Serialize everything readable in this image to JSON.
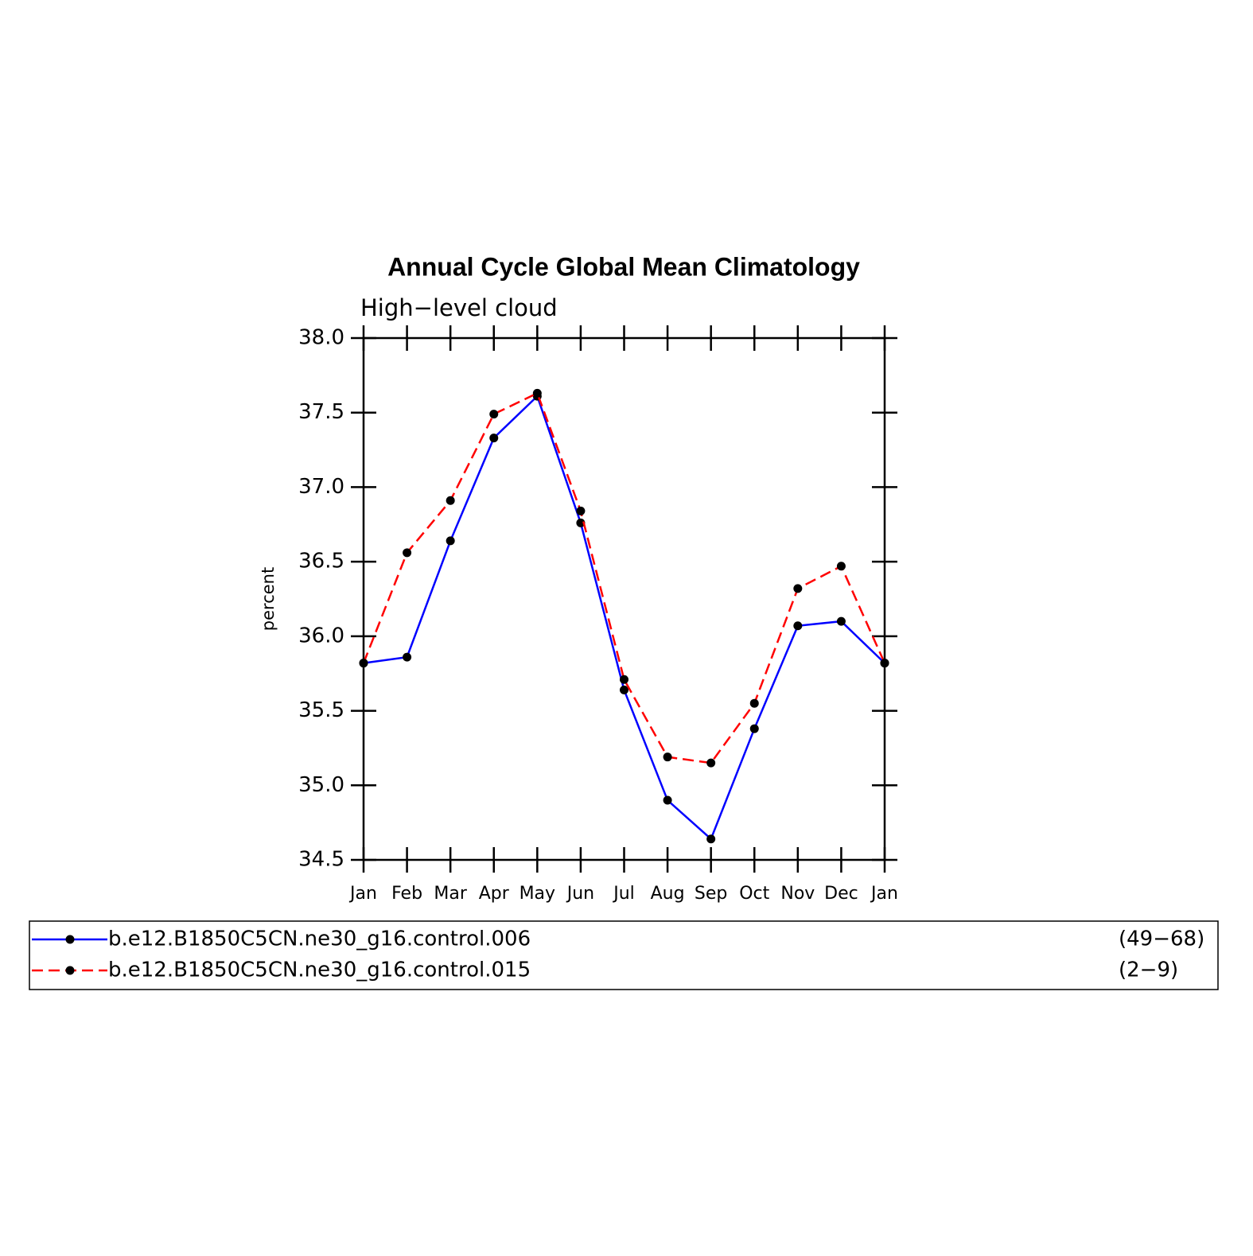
{
  "chart_data": {
    "type": "line",
    "title": "Annual Cycle Global Mean Climatology",
    "subtitle": "High−level cloud",
    "ylabel": "percent",
    "categories": [
      "Jan",
      "Feb",
      "Mar",
      "Apr",
      "May",
      "Jun",
      "Jul",
      "Aug",
      "Sep",
      "Oct",
      "Nov",
      "Dec",
      "Jan"
    ],
    "ylim": [
      34.5,
      38.0
    ],
    "yticks": [
      34.5,
      {
        "value": 35,
        "label": "35.0"
      },
      35.5,
      {
        "value": 36,
        "label": "36.0"
      },
      36.5,
      {
        "value": 37,
        "label": "37.0"
      },
      37.5,
      {
        "value": 38,
        "label": "38.0"
      }
    ],
    "series": [
      {
        "name": "b.e12.B1850C5CN.ne30_g16.control.006",
        "years": "(49−68)",
        "color": "#0000ff",
        "dash": false,
        "values": [
          35.82,
          35.86,
          36.64,
          37.33,
          37.61,
          36.76,
          35.64,
          34.9,
          34.64,
          35.38,
          36.07,
          36.1,
          35.82
        ]
      },
      {
        "name": "b.e12.B1850C5CN.ne30_g16.control.015",
        "years": "(2−9)",
        "color": "#ff0000",
        "dash": true,
        "values": [
          35.82,
          36.56,
          36.91,
          37.49,
          37.63,
          36.84,
          35.71,
          35.19,
          35.15,
          35.55,
          36.32,
          36.47,
          35.82
        ]
      }
    ]
  }
}
